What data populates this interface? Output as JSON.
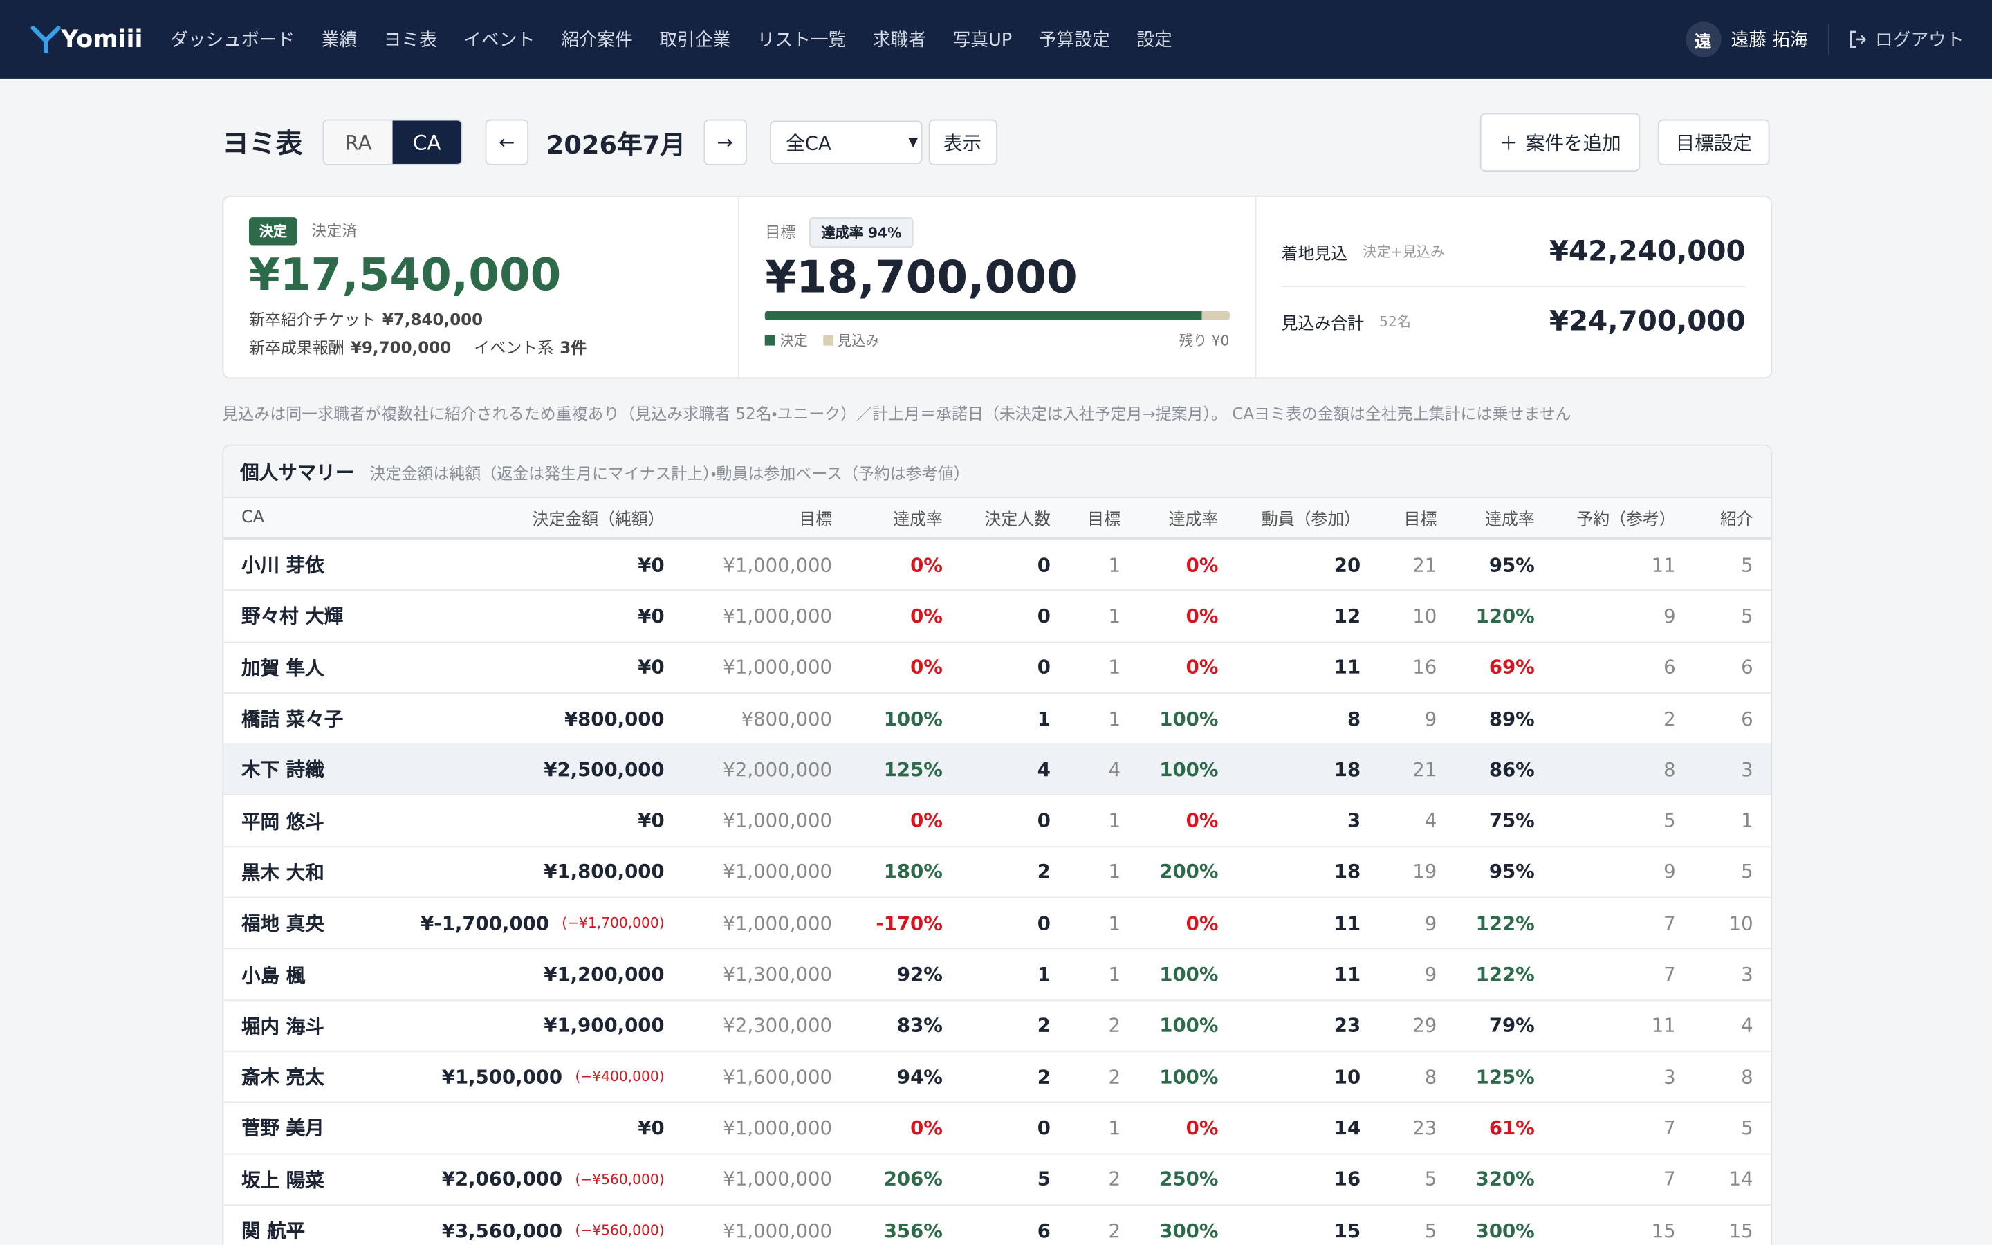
{
  "nav": {
    "logo": "Yomiii",
    "items": [
      "ダッシュボード",
      "業績",
      "ヨミ表",
      "イベント",
      "紹介案件",
      "取引企業",
      "リスト一覧",
      "求職者",
      "写真UP",
      "予算設定",
      "設定"
    ],
    "user_initial": "遠",
    "user_name": "遠藤 拓海",
    "logout": "ログアウト"
  },
  "toolbar": {
    "title": "ヨミ表",
    "toggle": [
      "RA",
      "CA"
    ],
    "prev": "←",
    "month": "2026年7月",
    "next": "→",
    "select": "全CA",
    "show": "表示",
    "add": "案件を追加",
    "target_setting": "目標設定"
  },
  "cards": {
    "decided": {
      "badge": "決定",
      "label": "決定済",
      "amount": "¥17,540,000",
      "details": [
        {
          "label": "新卒紹介チケット",
          "value": "¥7,840,000"
        },
        {
          "label": "新卒成果報酬",
          "value": "¥9,700,000"
        },
        {
          "label": "イベント系",
          "value": "3件"
        }
      ]
    },
    "target": {
      "label": "目標",
      "badge": "達成率 94%",
      "amount": "¥18,700,000",
      "bar": {
        "decided": 94,
        "prospect": 6
      },
      "legend": [
        "決定",
        "見込み"
      ],
      "remaining": "残り ¥0"
    },
    "forecast": [
      {
        "label": "着地見込",
        "sub": "決定+見込み",
        "amount": "¥42,240,000"
      },
      {
        "label": "見込み合計",
        "sub": "52名",
        "amount": "¥24,700,000"
      }
    ]
  },
  "note": "見込みは同一求職者が複数社に紹介されるため重複あり（見込み求職者 52名・ユニーク）／計上月＝承諾日（未決定は入社予定月→提案月）。 CAヨミ表の金額は全社売上集計には乗せません",
  "table": {
    "title": "個人サマリー",
    "subtitle": "決定金額は純額（返金は発生月にマイナス計上）・動員は参加ベース（予約は参考値）",
    "headers": [
      "CA",
      "決定金額（純額）",
      "目標",
      "達成率",
      "決定人数",
      "目標",
      "達成率",
      "動員（参加）",
      "目標",
      "達成率",
      "予約（参考）",
      "紹介"
    ],
    "highlighted_row": 4,
    "rows": [
      {
        "cells": [
          "小川 芽依",
          "¥0",
          "¥1,000,000",
          "0%",
          "0",
          "1",
          "0%",
          "20",
          "21",
          "95%",
          "11",
          "5"
        ],
        "adjustment": null,
        "tones": [
          "red",
          "red",
          "black"
        ]
      },
      {
        "cells": [
          "野々村 大輝",
          "¥0",
          "¥1,000,000",
          "0%",
          "0",
          "1",
          "0%",
          "12",
          "10",
          "120%",
          "9",
          "5"
        ],
        "adjustment": null,
        "tones": [
          "red",
          "red",
          "green"
        ]
      },
      {
        "cells": [
          "加賀 隼人",
          "¥0",
          "¥1,000,000",
          "0%",
          "0",
          "1",
          "0%",
          "11",
          "16",
          "69%",
          "6",
          "6"
        ],
        "adjustment": null,
        "tones": [
          "red",
          "red",
          "red"
        ]
      },
      {
        "cells": [
          "橋詰 菜々子",
          "¥800,000",
          "¥800,000",
          "100%",
          "1",
          "1",
          "100%",
          "8",
          "9",
          "89%",
          "2",
          "6"
        ],
        "adjustment": null,
        "tones": [
          "green",
          "green",
          "black"
        ]
      },
      {
        "cells": [
          "木下 詩織",
          "¥2,500,000",
          "¥2,000,000",
          "125%",
          "4",
          "4",
          "100%",
          "18",
          "21",
          "86%",
          "8",
          "3"
        ],
        "adjustment": null,
        "tones": [
          "green",
          "green",
          "black"
        ]
      },
      {
        "cells": [
          "平岡 悠斗",
          "¥0",
          "¥1,000,000",
          "0%",
          "0",
          "1",
          "0%",
          "3",
          "4",
          "75%",
          "5",
          "1"
        ],
        "adjustment": null,
        "tones": [
          "red",
          "red",
          "black"
        ]
      },
      {
        "cells": [
          "黒木 大和",
          "¥1,800,000",
          "¥1,000,000",
          "180%",
          "2",
          "1",
          "200%",
          "18",
          "19",
          "95%",
          "9",
          "5"
        ],
        "adjustment": null,
        "tones": [
          "green",
          "green",
          "black"
        ]
      },
      {
        "cells": [
          "福地 真央",
          "¥-1,700,000",
          "¥1,000,000",
          "-170%",
          "0",
          "1",
          "0%",
          "11",
          "9",
          "122%",
          "7",
          "10"
        ],
        "adjustment": "(−¥1,700,000)",
        "tones": [
          "red",
          "red",
          "green"
        ]
      },
      {
        "cells": [
          "小島 楓",
          "¥1,200,000",
          "¥1,300,000",
          "92%",
          "1",
          "1",
          "100%",
          "11",
          "9",
          "122%",
          "7",
          "3"
        ],
        "adjustment": null,
        "tones": [
          "black",
          "green",
          "green"
        ]
      },
      {
        "cells": [
          "堀内 海斗",
          "¥1,900,000",
          "¥2,300,000",
          "83%",
          "2",
          "2",
          "100%",
          "23",
          "29",
          "79%",
          "11",
          "4"
        ],
        "adjustment": null,
        "tones": [
          "black",
          "green",
          "black"
        ]
      },
      {
        "cells": [
          "斎木 亮太",
          "¥1,500,000",
          "¥1,600,000",
          "94%",
          "2",
          "2",
          "100%",
          "10",
          "8",
          "125%",
          "3",
          "8"
        ],
        "adjustment": "(−¥400,000)",
        "tones": [
          "black",
          "green",
          "green"
        ]
      },
      {
        "cells": [
          "菅野 美月",
          "¥0",
          "¥1,000,000",
          "0%",
          "0",
          "1",
          "0%",
          "14",
          "23",
          "61%",
          "7",
          "5"
        ],
        "adjustment": null,
        "tones": [
          "red",
          "red",
          "red"
        ]
      },
      {
        "cells": [
          "坂上 陽菜",
          "¥2,060,000",
          "¥1,000,000",
          "206%",
          "5",
          "2",
          "250%",
          "16",
          "5",
          "320%",
          "7",
          "14"
        ],
        "adjustment": "(−¥560,000)",
        "tones": [
          "green",
          "green",
          "green"
        ]
      },
      {
        "cells": [
          "関 航平",
          "¥3,560,000",
          "¥1,000,000",
          "356%",
          "6",
          "2",
          "300%",
          "15",
          "5",
          "300%",
          "15",
          "15"
        ],
        "adjustment": "(−¥560,000)",
        "tones": [
          "green",
          "green",
          "green"
        ]
      }
    ]
  }
}
